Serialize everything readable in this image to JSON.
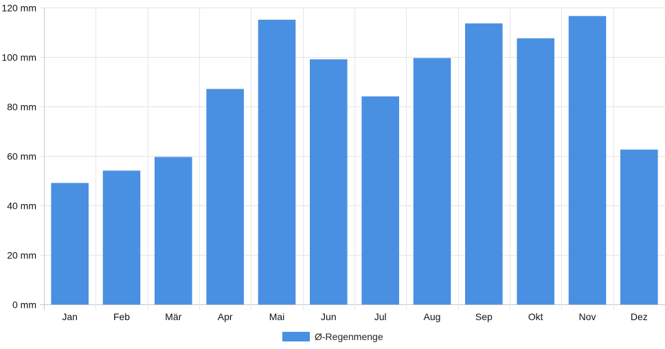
{
  "chart_data": {
    "type": "bar",
    "categories": [
      "Jan",
      "Feb",
      "Mär",
      "Apr",
      "Mai",
      "Jun",
      "Jul",
      "Aug",
      "Sep",
      "Okt",
      "Nov",
      "Dez"
    ],
    "series": [
      {
        "name": "Ø-Regenmenge",
        "values": [
          49,
          54,
          59.5,
          87,
          115,
          99,
          84,
          99.5,
          113.5,
          107.5,
          116.5,
          62.5
        ],
        "color": "#4a90e2"
      }
    ],
    "ylim": [
      0,
      120
    ],
    "yticks": [
      0,
      20,
      40,
      60,
      80,
      100,
      120
    ],
    "y_unit": "mm",
    "grid": true,
    "legend_position": "bottom-center"
  }
}
